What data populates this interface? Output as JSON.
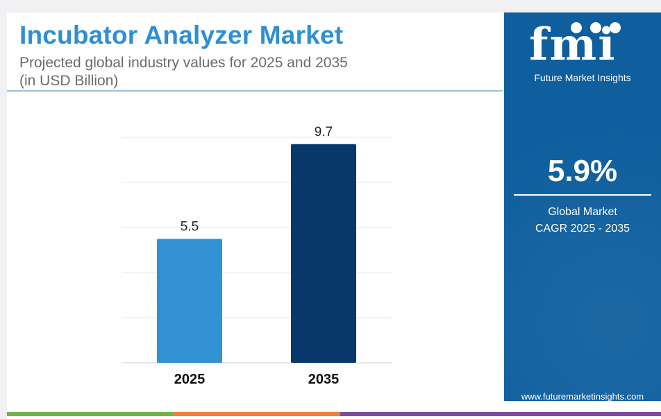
{
  "header": {
    "title": "Incubator Analyzer Market",
    "subtitle_line1": "Projected global industry values for 2025 and 2035",
    "subtitle_line2": "(in USD Billion)"
  },
  "chart_data": {
    "type": "bar",
    "categories": [
      "2025",
      "2035"
    ],
    "values": [
      5.5,
      9.7
    ],
    "data_labels": [
      "5.5",
      "9.7"
    ],
    "bar_colors": [
      "#3291d3",
      "#08386b"
    ],
    "ylim": [
      0,
      10
    ],
    "grid": true,
    "legend": "none"
  },
  "brand": {
    "logo_letters": "fmi",
    "logo_name": "Future Market Insights",
    "cagr_value": "5.9%",
    "cagr_label_line1": "Global Market",
    "cagr_label_line2": "CAGR 2025 - 2035",
    "website": "www.futuremarketinsights.com",
    "background": "#0f5f9e"
  },
  "footer_colors": [
    "#6fb543",
    "#f0803c",
    "#7c4aa0"
  ]
}
